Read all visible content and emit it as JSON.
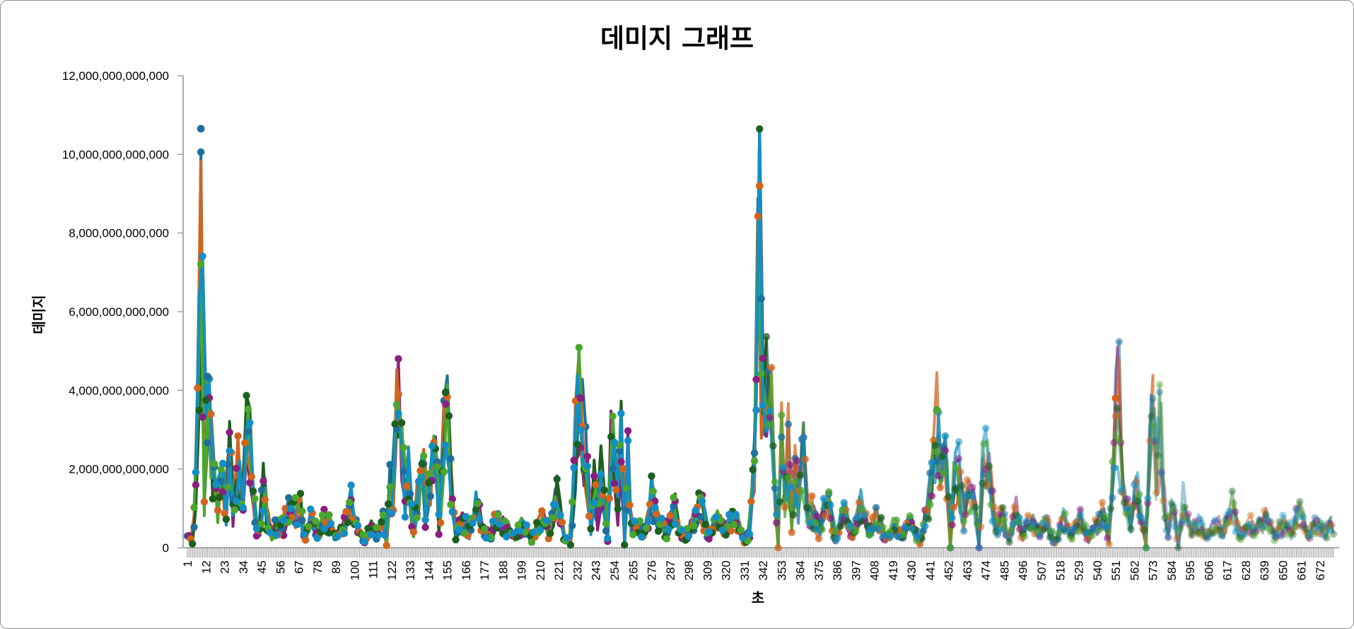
{
  "chart_data": {
    "type": "line",
    "title": "데미지 그래프",
    "xlabel": "초",
    "ylabel": "데미지",
    "ylim": [
      0,
      12000000000000
    ],
    "yticks": [
      0,
      2000000000000,
      4000000000000,
      6000000000000,
      8000000000000,
      10000000000000,
      12000000000000
    ],
    "ytick_labels": [
      "0",
      "2,000,000,000,000",
      "4,000,000,000,000",
      "6,000,000,000,000",
      "8,000,000,000,000",
      "10,000,000,000,000",
      "12,000,000,000,000"
    ],
    "x_range": [
      1,
      680
    ],
    "xtick_labels": [
      "1",
      "12",
      "23",
      "34",
      "45",
      "56",
      "67",
      "78",
      "89",
      "100",
      "111",
      "122",
      "133",
      "144",
      "155",
      "166",
      "177",
      "188",
      "199",
      "210",
      "221",
      "232",
      "243",
      "254",
      "265",
      "276",
      "287",
      "298",
      "309",
      "320",
      "331",
      "342",
      "353",
      "364",
      "375",
      "386",
      "397",
      "408",
      "419",
      "430",
      "441",
      "452",
      "463",
      "474",
      "485",
      "496",
      "507",
      "518",
      "529",
      "540",
      "551",
      "562",
      "573",
      "584",
      "595",
      "606",
      "617",
      "628",
      "639",
      "650",
      "661",
      "672"
    ],
    "grid": false,
    "legend": "none",
    "keypoints": [
      [
        1,
        0.3
      ],
      [
        4,
        0.1
      ],
      [
        6,
        1.5
      ],
      [
        8,
        4.9
      ],
      [
        9,
        10.6
      ],
      [
        11,
        1.1
      ],
      [
        13,
        4.3
      ],
      [
        15,
        2.6
      ],
      [
        17,
        1.9
      ],
      [
        19,
        0.8
      ],
      [
        21,
        2.1
      ],
      [
        24,
        1.0
      ],
      [
        26,
        2.7
      ],
      [
        28,
        0.8
      ],
      [
        31,
        2.2
      ],
      [
        33,
        1.0
      ],
      [
        36,
        3.1
      ],
      [
        38,
        2.5
      ],
      [
        40,
        1.3
      ],
      [
        42,
        0.5
      ],
      [
        44,
        0.4
      ],
      [
        46,
        1.7
      ],
      [
        48,
        0.8
      ],
      [
        51,
        0.3
      ],
      [
        54,
        0.6
      ],
      [
        58,
        0.5
      ],
      [
        62,
        1.3
      ],
      [
        65,
        0.9
      ],
      [
        68,
        1.0
      ],
      [
        71,
        0.2
      ],
      [
        74,
        0.7
      ],
      [
        78,
        0.4
      ],
      [
        83,
        0.8
      ],
      [
        88,
        0.3
      ],
      [
        93,
        0.5
      ],
      [
        98,
        1.1
      ],
      [
        102,
        0.4
      ],
      [
        106,
        0.2
      ],
      [
        110,
        0.6
      ],
      [
        114,
        0.3
      ],
      [
        117,
        0.8
      ],
      [
        119,
        0.1
      ],
      [
        121,
        1.5
      ],
      [
        123,
        1.2
      ],
      [
        125,
        3.2
      ],
      [
        126,
        3.9
      ],
      [
        128,
        2.8
      ],
      [
        130,
        1.3
      ],
      [
        132,
        1.9
      ],
      [
        135,
        0.5
      ],
      [
        138,
        1.4
      ],
      [
        140,
        2.6
      ],
      [
        142,
        0.9
      ],
      [
        144,
        1.5
      ],
      [
        146,
        1.8
      ],
      [
        148,
        2.7
      ],
      [
        150,
        0.6
      ],
      [
        152,
        1.5
      ],
      [
        154,
        3.9
      ],
      [
        156,
        2.7
      ],
      [
        158,
        1.0
      ],
      [
        160,
        0.3
      ],
      [
        164,
        0.7
      ],
      [
        168,
        0.4
      ],
      [
        172,
        1.2
      ],
      [
        176,
        0.4
      ],
      [
        180,
        0.3
      ],
      [
        185,
        0.8
      ],
      [
        190,
        0.5
      ],
      [
        195,
        0.3
      ],
      [
        200,
        0.6
      ],
      [
        205,
        0.2
      ],
      [
        210,
        0.8
      ],
      [
        215,
        0.4
      ],
      [
        220,
        1.3
      ],
      [
        224,
        0.3
      ],
      [
        228,
        0.1
      ],
      [
        230,
        1.7
      ],
      [
        232,
        3.6
      ],
      [
        234,
        3.8
      ],
      [
        236,
        2.8
      ],
      [
        238,
        1.9
      ],
      [
        240,
        0.6
      ],
      [
        242,
        1.6
      ],
      [
        244,
        0.8
      ],
      [
        246,
        1.8
      ],
      [
        248,
        1.2
      ],
      [
        250,
        0.2
      ],
      [
        252,
        2.4
      ],
      [
        254,
        2.9
      ],
      [
        256,
        1.0
      ],
      [
        258,
        2.9
      ],
      [
        260,
        0.1
      ],
      [
        262,
        2.7
      ],
      [
        264,
        0.5
      ],
      [
        268,
        0.6
      ],
      [
        272,
        0.3
      ],
      [
        276,
        1.4
      ],
      [
        280,
        0.6
      ],
      [
        285,
        0.4
      ],
      [
        290,
        1.0
      ],
      [
        295,
        0.2
      ],
      [
        300,
        0.6
      ],
      [
        305,
        1.1
      ],
      [
        310,
        0.3
      ],
      [
        315,
        0.7
      ],
      [
        320,
        0.4
      ],
      [
        325,
        0.9
      ],
      [
        330,
        0.2
      ],
      [
        334,
        0.3
      ],
      [
        336,
        1.7
      ],
      [
        338,
        3.3
      ],
      [
        340,
        9.2
      ],
      [
        341,
        4.7
      ],
      [
        343,
        3.1
      ],
      [
        345,
        4.5
      ],
      [
        347,
        3.2
      ],
      [
        349,
        1.2
      ],
      [
        351,
        0.0
      ],
      [
        353,
        2.7
      ],
      [
        355,
        1.0
      ],
      [
        357,
        2.8
      ],
      [
        359,
        0.5
      ],
      [
        361,
        2.4
      ],
      [
        363,
        1.0
      ],
      [
        366,
        2.4
      ],
      [
        368,
        0.8
      ],
      [
        371,
        1.0
      ],
      [
        375,
        0.4
      ],
      [
        380,
        1.2
      ],
      [
        385,
        0.3
      ],
      [
        390,
        0.9
      ],
      [
        395,
        0.3
      ],
      [
        400,
        1.1
      ],
      [
        405,
        0.4
      ],
      [
        410,
        0.8
      ],
      [
        415,
        0.2
      ],
      [
        420,
        0.6
      ],
      [
        425,
        0.3
      ],
      [
        430,
        0.7
      ],
      [
        435,
        0.1
      ],
      [
        440,
        1.1
      ],
      [
        443,
        2.0
      ],
      [
        445,
        3.5
      ],
      [
        447,
        2.5
      ],
      [
        449,
        2.6
      ],
      [
        451,
        1.8
      ],
      [
        453,
        0.0
      ],
      [
        455,
        1.6
      ],
      [
        458,
        1.9
      ],
      [
        461,
        0.7
      ],
      [
        464,
        1.5
      ],
      [
        467,
        1.4
      ],
      [
        470,
        0.0
      ],
      [
        472,
        1.9
      ],
      [
        474,
        2.2
      ],
      [
        477,
        1.6
      ],
      [
        480,
        0.4
      ],
      [
        484,
        0.8
      ],
      [
        488,
        0.2
      ],
      [
        492,
        0.9
      ],
      [
        496,
        0.3
      ],
      [
        500,
        0.7
      ],
      [
        505,
        0.4
      ],
      [
        510,
        0.6
      ],
      [
        515,
        0.1
      ],
      [
        520,
        0.7
      ],
      [
        525,
        0.3
      ],
      [
        530,
        0.8
      ],
      [
        535,
        0.2
      ],
      [
        540,
        0.6
      ],
      [
        544,
        0.9
      ],
      [
        547,
        0.1
      ],
      [
        549,
        1.9
      ],
      [
        551,
        3.8
      ],
      [
        553,
        3.7
      ],
      [
        555,
        1.4
      ],
      [
        557,
        1.2
      ],
      [
        560,
        0.6
      ],
      [
        563,
        1.7
      ],
      [
        566,
        1.0
      ],
      [
        569,
        0.0
      ],
      [
        571,
        2.5
      ],
      [
        573,
        3.7
      ],
      [
        575,
        1.3
      ],
      [
        577,
        3.6
      ],
      [
        579,
        1.5
      ],
      [
        582,
        0.3
      ],
      [
        585,
        1.2
      ],
      [
        588,
        0.0
      ],
      [
        591,
        1.2
      ],
      [
        595,
        0.4
      ],
      [
        600,
        0.6
      ],
      [
        605,
        0.3
      ],
      [
        610,
        0.7
      ],
      [
        615,
        0.4
      ],
      [
        620,
        1.0
      ],
      [
        625,
        0.3
      ],
      [
        630,
        0.6
      ],
      [
        635,
        0.5
      ],
      [
        640,
        0.7
      ],
      [
        645,
        0.3
      ],
      [
        650,
        0.6
      ],
      [
        655,
        0.4
      ],
      [
        660,
        1.0
      ],
      [
        665,
        0.3
      ],
      [
        670,
        0.6
      ],
      [
        675,
        0.4
      ],
      [
        680,
        0.6
      ]
    ],
    "keypoints_unit": "trillion (1e12) damage",
    "series_colors": [
      "#1e6f9e",
      "#8a1f7e",
      "#d2641e",
      "#1c5f1f",
      "#4aa62e",
      "#138ec4"
    ]
  }
}
